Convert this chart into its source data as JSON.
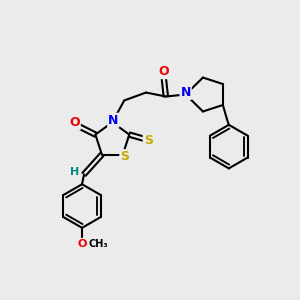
{
  "bg_color": "#ebebeb",
  "atom_colors": {
    "C": "#000000",
    "N": "#0000ee",
    "O": "#ee0000",
    "S": "#ccaa00",
    "H": "#008888"
  },
  "bond_color": "#000000",
  "line_width": 1.5,
  "figsize": [
    3.0,
    3.0
  ],
  "dpi": 100
}
